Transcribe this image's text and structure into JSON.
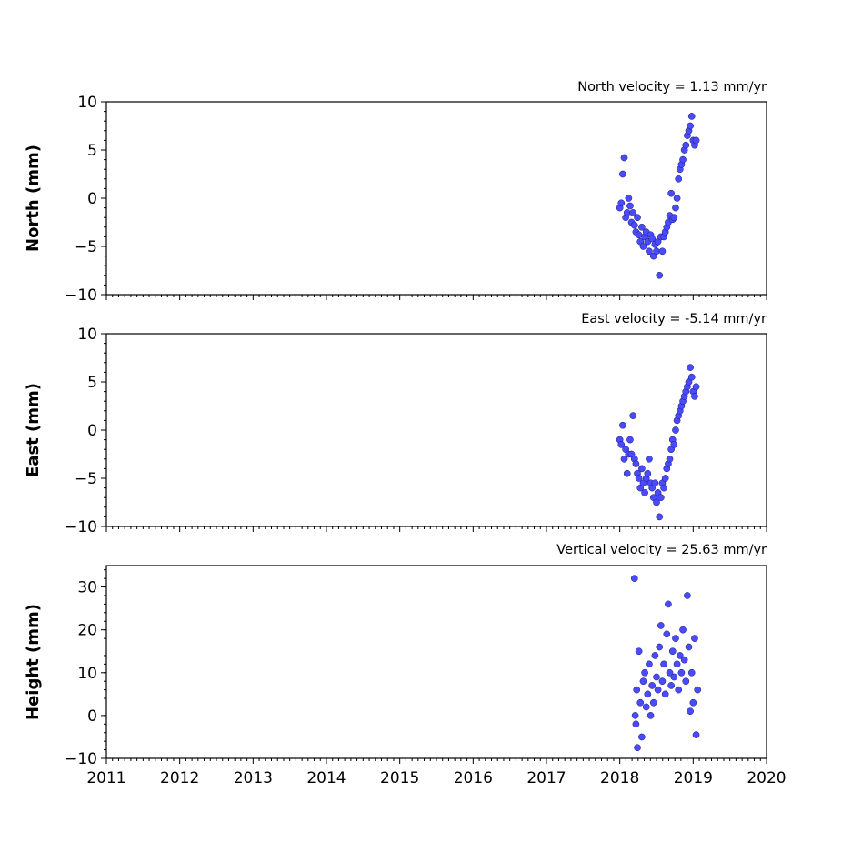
{
  "chart_data": [
    {
      "type": "scatter",
      "title": "North velocity = 1.13 mm/yr",
      "ylabel": "North (mm)",
      "xlim": [
        2011,
        2020
      ],
      "ylim": [
        -10,
        10
      ],
      "yticks": [
        -10,
        -5,
        0,
        5,
        10
      ],
      "ytick_labels": [
        "−10",
        "−5",
        "0",
        "5",
        "10"
      ],
      "x_tick_labels_shown": false,
      "series": [
        {
          "color": "#4a4aff",
          "x": [
            2018.0,
            2018.02,
            2018.04,
            2018.06,
            2018.08,
            2018.1,
            2018.12,
            2018.14,
            2018.16,
            2018.18,
            2018.2,
            2018.22,
            2018.24,
            2018.26,
            2018.28,
            2018.3,
            2018.32,
            2018.34,
            2018.36,
            2018.38,
            2018.4,
            2018.42,
            2018.44,
            2018.46,
            2018.48,
            2018.5,
            2018.52,
            2018.54,
            2018.56,
            2018.58,
            2018.6,
            2018.62,
            2018.64,
            2018.66,
            2018.68,
            2018.7,
            2018.72,
            2018.74,
            2018.76,
            2018.78,
            2018.8,
            2018.82,
            2018.84,
            2018.86,
            2018.88,
            2018.9,
            2018.92,
            2018.94,
            2018.96,
            2018.98,
            2019.0,
            2019.02,
            2019.04
          ],
          "y": [
            -1.0,
            -0.5,
            2.5,
            4.2,
            -2.0,
            -1.5,
            0.0,
            -0.8,
            -2.5,
            -1.5,
            -2.8,
            -3.5,
            -2.0,
            -3.8,
            -4.5,
            -3.0,
            -5.0,
            -4.0,
            -3.5,
            -4.5,
            -5.5,
            -3.8,
            -4.2,
            -6.0,
            -4.8,
            -5.5,
            -4.5,
            -8.0,
            -4.0,
            -5.5,
            -4.0,
            -3.5,
            -3.0,
            -2.5,
            -1.8,
            0.5,
            -2.2,
            -2.0,
            -1.0,
            0.0,
            2.0,
            3.0,
            3.5,
            4.0,
            5.0,
            5.5,
            6.5,
            7.0,
            7.5,
            8.5,
            6.0,
            5.5,
            6.0
          ]
        }
      ]
    },
    {
      "type": "scatter",
      "title": "East velocity = -5.14 mm/yr",
      "ylabel": "East (mm)",
      "xlim": [
        2011,
        2020
      ],
      "ylim": [
        -10,
        10
      ],
      "yticks": [
        -10,
        -5,
        0,
        5,
        10
      ],
      "ytick_labels": [
        "−10",
        "−5",
        "0",
        "5",
        "10"
      ],
      "x_tick_labels_shown": false,
      "series": [
        {
          "color": "#4a4aff",
          "x": [
            2018.0,
            2018.02,
            2018.04,
            2018.06,
            2018.08,
            2018.1,
            2018.12,
            2018.14,
            2018.16,
            2018.18,
            2018.2,
            2018.22,
            2018.24,
            2018.26,
            2018.28,
            2018.3,
            2018.32,
            2018.34,
            2018.36,
            2018.38,
            2018.4,
            2018.42,
            2018.44,
            2018.46,
            2018.48,
            2018.5,
            2018.52,
            2018.54,
            2018.56,
            2018.58,
            2018.6,
            2018.62,
            2018.64,
            2018.66,
            2018.68,
            2018.7,
            2018.72,
            2018.74,
            2018.76,
            2018.78,
            2018.8,
            2018.82,
            2018.84,
            2018.86,
            2018.88,
            2018.9,
            2018.92,
            2018.94,
            2018.96,
            2018.98,
            2019.0,
            2019.02,
            2019.04
          ],
          "y": [
            -1.0,
            -1.5,
            0.5,
            -3.0,
            -2.0,
            -4.5,
            -2.5,
            -1.0,
            -2.5,
            1.5,
            -3.0,
            -3.5,
            -4.5,
            -5.0,
            -6.0,
            -4.0,
            -5.5,
            -6.5,
            -5.0,
            -4.5,
            -3.0,
            -5.5,
            -6.0,
            -7.0,
            -5.5,
            -7.5,
            -6.5,
            -9.0,
            -7.0,
            -5.5,
            -6.0,
            -5.0,
            -4.0,
            -3.5,
            -3.0,
            -2.0,
            -1.0,
            -1.5,
            0.0,
            1.0,
            1.5,
            2.0,
            2.5,
            3.0,
            3.5,
            4.0,
            4.5,
            5.0,
            6.5,
            5.5,
            4.0,
            3.5,
            4.5
          ]
        }
      ]
    },
    {
      "type": "scatter",
      "title": "Vertical velocity = 25.63 mm/yr",
      "ylabel": "Height (mm)",
      "xlim": [
        2011,
        2020
      ],
      "ylim": [
        -10,
        35
      ],
      "yticks": [
        -10,
        0,
        10,
        20,
        30
      ],
      "ytick_labels": [
        "−10",
        "0",
        "10",
        "20",
        "30"
      ],
      "xticks": [
        2011,
        2012,
        2013,
        2014,
        2015,
        2016,
        2017,
        2018,
        2019,
        2020
      ],
      "xtick_labels": [
        "2011",
        "2012",
        "2013",
        "2014",
        "2015",
        "2016",
        "2017",
        "2018",
        "2019",
        "2020"
      ],
      "x_tick_labels_shown": true,
      "series": [
        {
          "color": "#4a4aff",
          "x": [
            2018.2,
            2018.21,
            2018.22,
            2018.23,
            2018.24,
            2018.26,
            2018.28,
            2018.3,
            2018.32,
            2018.34,
            2018.36,
            2018.38,
            2018.4,
            2018.42,
            2018.44,
            2018.46,
            2018.48,
            2018.5,
            2018.52,
            2018.54,
            2018.56,
            2018.58,
            2018.6,
            2018.62,
            2018.64,
            2018.66,
            2018.68,
            2018.7,
            2018.72,
            2018.74,
            2018.76,
            2018.78,
            2018.8,
            2018.82,
            2018.84,
            2018.86,
            2018.88,
            2018.9,
            2018.92,
            2018.94,
            2018.96,
            2018.98,
            2019.0,
            2019.02,
            2019.04,
            2019.06
          ],
          "y": [
            32.0,
            0.0,
            -2.0,
            6.0,
            -7.5,
            15.0,
            3.0,
            -5.0,
            8.0,
            10.0,
            2.0,
            5.0,
            12.0,
            0.0,
            7.0,
            3.0,
            14.0,
            9.0,
            6.0,
            16.0,
            21.0,
            8.0,
            12.0,
            5.0,
            19.0,
            26.0,
            10.0,
            7.0,
            15.0,
            9.0,
            18.0,
            12.0,
            6.0,
            14.0,
            10.0,
            20.0,
            13.0,
            8.0,
            28.0,
            16.0,
            1.0,
            10.0,
            3.0,
            18.0,
            -4.5,
            6.0
          ]
        }
      ]
    }
  ]
}
